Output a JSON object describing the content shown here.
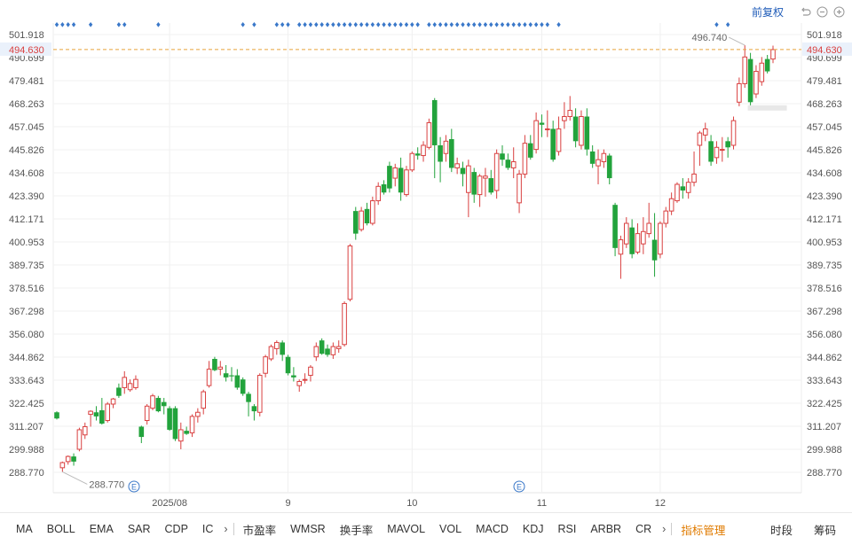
{
  "toolbar": {
    "adjust_label": "前复权",
    "undo_icon": "undo-icon",
    "zoom_out_icon": "zoom-out-icon",
    "zoom_in_icon": "zoom-in-icon"
  },
  "chart_data": {
    "type": "candlestick",
    "y_ticks": [
      "501.918",
      "490.699",
      "479.481",
      "468.263",
      "457.045",
      "445.826",
      "434.608",
      "423.390",
      "412.171",
      "400.953",
      "389.735",
      "378.516",
      "367.298",
      "356.080",
      "344.862",
      "333.643",
      "322.425",
      "311.207",
      "299.988",
      "288.770"
    ],
    "x_labels": [
      "2025/08",
      "9",
      "10",
      "11",
      "12"
    ],
    "last_price": "494.630",
    "high_label": "496.740",
    "low_label": "288.770",
    "event_marker": "E",
    "up_color": "#d94040",
    "down_color": "#22a33c",
    "last_price_color": "#e8a33a",
    "dot_color": "#3a78c9",
    "candles": [
      {
        "o": 318.0,
        "h": 318.5,
        "l": 314.5,
        "c": 315.0
      },
      {
        "o": 291.0,
        "h": 294.0,
        "l": 289.0,
        "c": 293.5
      },
      {
        "o": 294.0,
        "h": 297.0,
        "l": 292.5,
        "c": 296.5
      },
      {
        "o": 296.5,
        "h": 298.0,
        "l": 292.0,
        "c": 294.0
      },
      {
        "o": 300.0,
        "h": 310.5,
        "l": 299.0,
        "c": 309.5
      },
      {
        "o": 307.0,
        "h": 313.0,
        "l": 305.0,
        "c": 311.0
      },
      {
        "o": 317.0,
        "h": 319.0,
        "l": 311.0,
        "c": 318.5
      },
      {
        "o": 318.0,
        "h": 321.0,
        "l": 314.0,
        "c": 316.0
      },
      {
        "o": 319.0,
        "h": 325.0,
        "l": 312.0,
        "c": 312.5
      },
      {
        "o": 314.0,
        "h": 323.0,
        "l": 313.0,
        "c": 322.0
      },
      {
        "o": 322.0,
        "h": 325.0,
        "l": 320.0,
        "c": 324.5
      },
      {
        "o": 330.0,
        "h": 332.0,
        "l": 325.0,
        "c": 326.0
      },
      {
        "o": 330.0,
        "h": 338.0,
        "l": 327.0,
        "c": 335.0
      },
      {
        "o": 329.0,
        "h": 334.0,
        "l": 328.0,
        "c": 332.0
      },
      {
        "o": 330.0,
        "h": 336.0,
        "l": 329.0,
        "c": 334.0
      },
      {
        "o": 311.0,
        "h": 311.5,
        "l": 303.0,
        "c": 306.0
      },
      {
        "o": 314.0,
        "h": 322.0,
        "l": 312.0,
        "c": 321.0
      },
      {
        "o": 320.0,
        "h": 327.0,
        "l": 319.0,
        "c": 326.0
      },
      {
        "o": 325.0,
        "h": 326.0,
        "l": 318.0,
        "c": 318.5
      },
      {
        "o": 323.0,
        "h": 325.0,
        "l": 317.0,
        "c": 321.0
      },
      {
        "o": 320.0,
        "h": 321.0,
        "l": 309.0,
        "c": 309.5
      },
      {
        "o": 320.0,
        "h": 321.0,
        "l": 304.0,
        "c": 305.0
      },
      {
        "o": 304.0,
        "h": 313.0,
        "l": 300.0,
        "c": 309.5
      },
      {
        "o": 309.0,
        "h": 311.0,
        "l": 307.0,
        "c": 307.5
      },
      {
        "o": 308.0,
        "h": 317.0,
        "l": 306.0,
        "c": 316.0
      },
      {
        "o": 316.0,
        "h": 320.0,
        "l": 313.0,
        "c": 318.0
      },
      {
        "o": 320.0,
        "h": 329.0,
        "l": 317.0,
        "c": 328.0
      },
      {
        "o": 331.0,
        "h": 343.0,
        "l": 330.0,
        "c": 339.0
      },
      {
        "o": 344.0,
        "h": 345.0,
        "l": 338.0,
        "c": 338.5
      },
      {
        "o": 339.0,
        "h": 343.0,
        "l": 336.0,
        "c": 340.0
      },
      {
        "o": 337.0,
        "h": 341.0,
        "l": 333.0,
        "c": 335.0
      },
      {
        "o": 336.0,
        "h": 340.0,
        "l": 333.0,
        "c": 335.5
      },
      {
        "o": 336.0,
        "h": 339.0,
        "l": 329.0,
        "c": 330.0
      },
      {
        "o": 334.0,
        "h": 335.0,
        "l": 326.0,
        "c": 327.0
      },
      {
        "o": 327.0,
        "h": 328.0,
        "l": 316.0,
        "c": 323.0
      },
      {
        "o": 321.0,
        "h": 322.0,
        "l": 314.0,
        "c": 318.5
      },
      {
        "o": 318.0,
        "h": 337.0,
        "l": 316.0,
        "c": 336.0
      },
      {
        "o": 337.0,
        "h": 346.0,
        "l": 335.0,
        "c": 345.0
      },
      {
        "o": 344.0,
        "h": 351.0,
        "l": 343.0,
        "c": 350.0
      },
      {
        "o": 349.0,
        "h": 353.0,
        "l": 346.0,
        "c": 352.0
      },
      {
        "o": 352.0,
        "h": 353.0,
        "l": 343.0,
        "c": 346.0
      },
      {
        "o": 345.0,
        "h": 346.0,
        "l": 336.0,
        "c": 337.0
      },
      {
        "o": 336.0,
        "h": 340.0,
        "l": 333.0,
        "c": 335.0
      },
      {
        "o": 331.0,
        "h": 334.0,
        "l": 328.0,
        "c": 333.0
      },
      {
        "o": 334.0,
        "h": 337.0,
        "l": 332.0,
        "c": 334.0
      },
      {
        "o": 336.0,
        "h": 341.0,
        "l": 333.0,
        "c": 340.0
      },
      {
        "o": 345.0,
        "h": 352.0,
        "l": 343.0,
        "c": 350.0
      },
      {
        "o": 353.0,
        "h": 354.0,
        "l": 346.0,
        "c": 346.5
      },
      {
        "o": 349.0,
        "h": 351.0,
        "l": 345.0,
        "c": 346.0
      },
      {
        "o": 346.0,
        "h": 352.0,
        "l": 344.0,
        "c": 350.0
      },
      {
        "o": 349.0,
        "h": 353.0,
        "l": 347.0,
        "c": 350.0
      },
      {
        "o": 351.0,
        "h": 372.0,
        "l": 350.0,
        "c": 371.0
      },
      {
        "o": 373.0,
        "h": 400.0,
        "l": 372.0,
        "c": 399.0
      },
      {
        "o": 416.0,
        "h": 418.0,
        "l": 402.0,
        "c": 405.0
      },
      {
        "o": 407.0,
        "h": 418.0,
        "l": 406.0,
        "c": 416.0
      },
      {
        "o": 417.0,
        "h": 420.0,
        "l": 409.0,
        "c": 410.0
      },
      {
        "o": 410.0,
        "h": 423.0,
        "l": 409.0,
        "c": 421.0
      },
      {
        "o": 421.0,
        "h": 430.0,
        "l": 419.0,
        "c": 428.0
      },
      {
        "o": 429.0,
        "h": 431.0,
        "l": 424.0,
        "c": 425.0
      },
      {
        "o": 438.0,
        "h": 440.0,
        "l": 425.0,
        "c": 427.0
      },
      {
        "o": 432.0,
        "h": 439.0,
        "l": 428.0,
        "c": 437.0
      },
      {
        "o": 437.0,
        "h": 442.0,
        "l": 421.0,
        "c": 425.0
      },
      {
        "o": 424.0,
        "h": 438.0,
        "l": 423.0,
        "c": 436.0
      },
      {
        "o": 436.0,
        "h": 445.0,
        "l": 435.0,
        "c": 444.0
      },
      {
        "o": 444.0,
        "h": 447.0,
        "l": 441.0,
        "c": 443.0
      },
      {
        "o": 443.0,
        "h": 450.0,
        "l": 440.0,
        "c": 448.0
      },
      {
        "o": 447.0,
        "h": 461.0,
        "l": 446.0,
        "c": 459.0
      },
      {
        "o": 470.0,
        "h": 471.0,
        "l": 432.0,
        "c": 448.0
      },
      {
        "o": 448.0,
        "h": 452.0,
        "l": 430.0,
        "c": 440.0
      },
      {
        "o": 444.0,
        "h": 453.0,
        "l": 440.0,
        "c": 450.0
      },
      {
        "o": 451.0,
        "h": 456.0,
        "l": 435.0,
        "c": 437.0
      },
      {
        "o": 437.0,
        "h": 442.0,
        "l": 434.0,
        "c": 439.0
      },
      {
        "o": 437.0,
        "h": 440.0,
        "l": 428.0,
        "c": 434.0
      },
      {
        "o": 425.0,
        "h": 441.0,
        "l": 413.0,
        "c": 438.0
      },
      {
        "o": 435.0,
        "h": 437.0,
        "l": 420.0,
        "c": 424.0
      },
      {
        "o": 424.0,
        "h": 434.0,
        "l": 418.0,
        "c": 433.0
      },
      {
        "o": 432.0,
        "h": 437.0,
        "l": 423.0,
        "c": 433.0
      },
      {
        "o": 432.0,
        "h": 436.0,
        "l": 424.0,
        "c": 425.0
      },
      {
        "o": 426.0,
        "h": 446.0,
        "l": 422.0,
        "c": 444.0
      },
      {
        "o": 444.0,
        "h": 448.0,
        "l": 438.0,
        "c": 441.0
      },
      {
        "o": 441.0,
        "h": 444.0,
        "l": 436.0,
        "c": 437.0
      },
      {
        "o": 437.0,
        "h": 447.0,
        "l": 432.0,
        "c": 440.0
      },
      {
        "o": 420.0,
        "h": 436.0,
        "l": 415.0,
        "c": 434.0
      },
      {
        "o": 434.0,
        "h": 453.0,
        "l": 432.0,
        "c": 449.0
      },
      {
        "o": 449.0,
        "h": 453.0,
        "l": 441.0,
        "c": 442.0
      },
      {
        "o": 446.0,
        "h": 464.0,
        "l": 444.0,
        "c": 460.0
      },
      {
        "o": 459.0,
        "h": 463.0,
        "l": 452.0,
        "c": 458.0
      },
      {
        "o": 456.0,
        "h": 465.0,
        "l": 452.0,
        "c": 456.0
      },
      {
        "o": 456.0,
        "h": 460.0,
        "l": 440.0,
        "c": 441.0
      },
      {
        "o": 445.0,
        "h": 462.0,
        "l": 443.0,
        "c": 456.0
      },
      {
        "o": 460.0,
        "h": 469.0,
        "l": 456.0,
        "c": 462.0
      },
      {
        "o": 462.0,
        "h": 472.0,
        "l": 460.0,
        "c": 465.0
      },
      {
        "o": 462.0,
        "h": 466.0,
        "l": 447.0,
        "c": 450.0
      },
      {
        "o": 448.0,
        "h": 465.0,
        "l": 446.0,
        "c": 462.0
      },
      {
        "o": 462.0,
        "h": 466.0,
        "l": 443.0,
        "c": 446.0
      },
      {
        "o": 445.0,
        "h": 448.0,
        "l": 437.0,
        "c": 439.0
      },
      {
        "o": 438.0,
        "h": 446.0,
        "l": 429.0,
        "c": 441.0
      },
      {
        "o": 440.0,
        "h": 446.0,
        "l": 437.0,
        "c": 444.0
      },
      {
        "o": 443.0,
        "h": 444.0,
        "l": 429.0,
        "c": 432.0
      },
      {
        "o": 419.0,
        "h": 420.0,
        "l": 394.0,
        "c": 398.0
      },
      {
        "o": 395.0,
        "h": 404.0,
        "l": 383.0,
        "c": 402.0
      },
      {
        "o": 400.0,
        "h": 413.0,
        "l": 398.0,
        "c": 410.0
      },
      {
        "o": 408.0,
        "h": 412.0,
        "l": 393.0,
        "c": 395.0
      },
      {
        "o": 396.0,
        "h": 410.0,
        "l": 395.0,
        "c": 405.0
      },
      {
        "o": 400.0,
        "h": 413.0,
        "l": 395.0,
        "c": 406.0
      },
      {
        "o": 405.0,
        "h": 420.0,
        "l": 403.0,
        "c": 410.0
      },
      {
        "o": 402.0,
        "h": 415.0,
        "l": 384.0,
        "c": 392.0
      },
      {
        "o": 395.0,
        "h": 411.0,
        "l": 393.0,
        "c": 410.0
      },
      {
        "o": 410.0,
        "h": 418.0,
        "l": 408.0,
        "c": 416.0
      },
      {
        "o": 416.0,
        "h": 425.0,
        "l": 414.0,
        "c": 422.0
      },
      {
        "o": 421.0,
        "h": 430.0,
        "l": 420.0,
        "c": 429.0
      },
      {
        "o": 428.0,
        "h": 432.0,
        "l": 422.0,
        "c": 426.0
      },
      {
        "o": 425.0,
        "h": 432.0,
        "l": 422.0,
        "c": 430.0
      },
      {
        "o": 430.0,
        "h": 445.0,
        "l": 428.0,
        "c": 434.0
      },
      {
        "o": 448.0,
        "h": 455.0,
        "l": 438.0,
        "c": 454.0
      },
      {
        "o": 453.0,
        "h": 459.0,
        "l": 450.0,
        "c": 456.0
      },
      {
        "o": 450.0,
        "h": 453.0,
        "l": 438.0,
        "c": 440.0
      },
      {
        "o": 442.0,
        "h": 450.0,
        "l": 439.0,
        "c": 447.0
      },
      {
        "o": 446.0,
        "h": 452.0,
        "l": 440.0,
        "c": 446.0
      },
      {
        "o": 450.0,
        "h": 452.0,
        "l": 442.0,
        "c": 447.0
      },
      {
        "o": 448.0,
        "h": 462.0,
        "l": 446.0,
        "c": 460.0
      },
      {
        "o": 469.0,
        "h": 481.0,
        "l": 467.0,
        "c": 478.0
      },
      {
        "o": 478.0,
        "h": 496.7,
        "l": 476.0,
        "c": 491.0
      },
      {
        "o": 490.0,
        "h": 493.0,
        "l": 466.0,
        "c": 469.0
      },
      {
        "o": 473.0,
        "h": 487.0,
        "l": 471.0,
        "c": 484.0
      },
      {
        "o": 479.0,
        "h": 491.0,
        "l": 477.0,
        "c": 488.0
      },
      {
        "o": 490.0,
        "h": 492.0,
        "l": 483.0,
        "c": 484.0
      },
      {
        "o": 490.0,
        "h": 496.5,
        "l": 488.0,
        "c": 494.6
      }
    ],
    "dots": [
      0,
      1,
      2,
      3,
      6,
      11,
      12,
      18,
      33,
      35,
      39,
      40,
      41,
      43,
      44,
      45,
      46,
      47,
      48,
      49,
      50,
      51,
      52,
      53,
      54,
      55,
      56,
      57,
      58,
      59,
      60,
      61,
      62,
      63,
      64,
      66,
      67,
      68,
      69,
      70,
      71,
      72,
      73,
      74,
      75,
      76,
      77,
      78,
      79,
      80,
      81,
      82,
      83,
      84,
      85,
      86,
      87,
      89,
      117,
      119
    ]
  },
  "bottom_bar": {
    "indicators_a": [
      "MA",
      "BOLL",
      "EMA",
      "SAR",
      "CDP",
      "IC"
    ],
    "indicators_b": [
      "市盈率",
      "WMSR",
      "换手率",
      "MAVOL",
      "VOL",
      "MACD",
      "KDJ",
      "RSI",
      "ARBR",
      "CR"
    ],
    "manage_label": "指标管理",
    "right": [
      "时段",
      "筹码"
    ]
  }
}
